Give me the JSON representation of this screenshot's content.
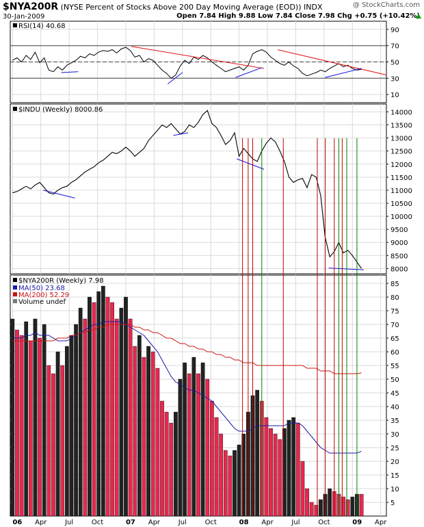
{
  "header": {
    "symbol": "$NYA200R",
    "description": "(NYSE Percent of Stocks Above 200 Day Moving Average (EOD))",
    "exchange": "INDX",
    "date": "30-Jan-2009",
    "ohlc": "Open 7.84  High 9.88  Low 7.84  Close 7.98  Chg +0.75 (+10.42%)",
    "watermark": "@ StockCharts.com",
    "change_color": "#009900"
  },
  "colors": {
    "up_bar": "#222222",
    "down_bar": "#e8284e",
    "ma50": "#1a1aa6",
    "ma200": "#cc1111",
    "trend_red": "#e01010",
    "trend_blue": "#1010e0",
    "vline_red": "#c00000",
    "vline_green": "#008000",
    "grid": "#d9d9d9"
  },
  "chart_data": [
    {
      "type": "line",
      "panel": "rsi",
      "legend": "RSI(14) 40.68",
      "ylim": [
        0,
        100
      ],
      "yticks": [
        10,
        30,
        50,
        70,
        90
      ],
      "reference_lines": [
        30,
        50,
        70
      ],
      "x": [
        2006.0,
        2006.04,
        2006.08,
        2006.12,
        2006.16,
        2006.2,
        2006.24,
        2006.28,
        2006.32,
        2006.36,
        2006.4,
        2006.44,
        2006.48,
        2006.52,
        2006.56,
        2006.6,
        2006.64,
        2006.68,
        2006.72,
        2006.76,
        2006.8,
        2006.84,
        2006.88,
        2006.92,
        2006.96,
        2007.0,
        2007.04,
        2007.08,
        2007.12,
        2007.16,
        2007.2,
        2007.24,
        2007.28,
        2007.32,
        2007.36,
        2007.4,
        2007.44,
        2007.48,
        2007.52,
        2007.56,
        2007.6,
        2007.64,
        2007.68,
        2007.72,
        2007.76,
        2007.8,
        2007.84,
        2007.88,
        2007.92,
        2007.96,
        2008.0,
        2008.04,
        2008.08,
        2008.12,
        2008.16,
        2008.2,
        2008.24,
        2008.28,
        2008.32,
        2008.36,
        2008.4,
        2008.44,
        2008.48,
        2008.52,
        2008.56,
        2008.6,
        2008.64,
        2008.68,
        2008.72,
        2008.76,
        2008.8,
        2008.84,
        2008.88,
        2008.92,
        2008.96,
        2009.0,
        2009.04,
        2009.08
      ],
      "values": [
        52,
        55,
        50,
        58,
        53,
        62,
        49,
        55,
        40,
        38,
        44,
        40,
        46,
        49,
        52,
        57,
        55,
        60,
        58,
        62,
        64,
        63,
        65,
        61,
        66,
        68,
        64,
        56,
        58,
        50,
        54,
        52,
        46,
        40,
        36,
        30,
        34,
        45,
        52,
        48,
        56,
        53,
        58,
        55,
        50,
        46,
        42,
        38,
        40,
        42,
        44,
        40,
        46,
        60,
        63,
        65,
        62,
        56,
        52,
        48,
        46,
        50,
        45,
        42,
        36,
        33,
        35,
        37,
        40,
        38,
        42,
        45,
        48,
        44,
        46,
        42,
        40,
        41
      ]
    },
    {
      "type": "line",
      "panel": "price",
      "legend": "$INDU (Weekly) 8000.86",
      "ylim": [
        7800,
        14300
      ],
      "yticks": [
        8000,
        8500,
        9000,
        9500,
        10000,
        10500,
        11000,
        11500,
        12000,
        12500,
        13000,
        13500,
        14000
      ],
      "x": [
        2006.0,
        2006.04,
        2006.08,
        2006.12,
        2006.16,
        2006.2,
        2006.24,
        2006.28,
        2006.32,
        2006.36,
        2006.4,
        2006.44,
        2006.48,
        2006.52,
        2006.56,
        2006.6,
        2006.64,
        2006.68,
        2006.72,
        2006.76,
        2006.8,
        2006.84,
        2006.88,
        2006.92,
        2006.96,
        2007.0,
        2007.04,
        2007.08,
        2007.12,
        2007.16,
        2007.2,
        2007.24,
        2007.28,
        2007.32,
        2007.36,
        2007.4,
        2007.44,
        2007.48,
        2007.52,
        2007.56,
        2007.6,
        2007.64,
        2007.68,
        2007.72,
        2007.76,
        2007.8,
        2007.84,
        2007.88,
        2007.92,
        2007.96,
        2008.0,
        2008.04,
        2008.08,
        2008.12,
        2008.16,
        2008.2,
        2008.24,
        2008.28,
        2008.32,
        2008.36,
        2008.4,
        2008.44,
        2008.48,
        2008.52,
        2008.56,
        2008.6,
        2008.64,
        2008.68,
        2008.72,
        2008.76,
        2008.8,
        2008.84,
        2008.88,
        2008.92,
        2008.96,
        2009.0,
        2009.04,
        2009.08
      ],
      "values": [
        10900,
        10950,
        11050,
        11150,
        11050,
        11200,
        11300,
        11100,
        10900,
        10850,
        11000,
        11100,
        11150,
        11300,
        11400,
        11550,
        11700,
        11800,
        11900,
        12050,
        12150,
        12300,
        12450,
        12400,
        12500,
        12650,
        12500,
        12300,
        12450,
        12600,
        12900,
        13100,
        13300,
        13500,
        13400,
        13550,
        13350,
        13150,
        13250,
        13500,
        13400,
        13600,
        13900,
        14050,
        13550,
        13400,
        13100,
        12750,
        12900,
        13200,
        12300,
        12600,
        12400,
        12200,
        12100,
        12500,
        12800,
        13000,
        12850,
        12500,
        12100,
        11500,
        11300,
        11400,
        11450,
        11100,
        11600,
        11500,
        10800,
        9200,
        8450,
        8650,
        9000,
        8600,
        8700,
        8500,
        8250,
        8001
      ]
    },
    {
      "type": "bar",
      "panel": "breadth",
      "legend": "$NYA200R (Weekly) 7.98",
      "ma_legends": [
        "MA(50) 23.68",
        "MA(200) 52.29",
        "Volume undef"
      ],
      "ylim": [
        0,
        88
      ],
      "yticks": [
        5,
        10,
        15,
        20,
        25,
        30,
        35,
        40,
        45,
        50,
        55,
        60,
        65,
        70,
        75,
        80,
        85
      ],
      "x": [
        2006.0,
        2006.04,
        2006.08,
        2006.12,
        2006.16,
        2006.2,
        2006.24,
        2006.28,
        2006.32,
        2006.36,
        2006.4,
        2006.44,
        2006.48,
        2006.52,
        2006.56,
        2006.6,
        2006.64,
        2006.68,
        2006.72,
        2006.76,
        2006.8,
        2006.84,
        2006.88,
        2006.92,
        2006.96,
        2007.0,
        2007.04,
        2007.08,
        2007.12,
        2007.16,
        2007.2,
        2007.24,
        2007.28,
        2007.32,
        2007.36,
        2007.4,
        2007.44,
        2007.48,
        2007.52,
        2007.56,
        2007.6,
        2007.64,
        2007.68,
        2007.72,
        2007.76,
        2007.8,
        2007.84,
        2007.88,
        2007.92,
        2007.96,
        2008.0,
        2008.04,
        2008.08,
        2008.12,
        2008.16,
        2008.2,
        2008.24,
        2008.28,
        2008.32,
        2008.36,
        2008.4,
        2008.44,
        2008.48,
        2008.52,
        2008.56,
        2008.6,
        2008.64,
        2008.68,
        2008.72,
        2008.76,
        2008.8,
        2008.84,
        2008.88,
        2008.92,
        2008.96,
        2009.0,
        2009.04,
        2009.08
      ],
      "values": [
        72,
        68,
        66,
        71,
        64,
        72,
        65,
        70,
        55,
        52,
        60,
        55,
        62,
        66,
        70,
        76,
        72,
        80,
        78,
        82,
        84,
        80,
        78,
        72,
        76,
        80,
        72,
        62,
        66,
        58,
        62,
        60,
        54,
        42,
        38,
        34,
        38,
        50,
        56,
        52,
        58,
        52,
        56,
        50,
        42,
        36,
        30,
        24,
        22,
        24,
        26,
        30,
        38,
        44,
        46,
        42,
        36,
        32,
        30,
        28,
        32,
        35,
        36,
        34,
        20,
        10,
        5,
        4,
        6,
        8,
        10,
        9,
        8,
        7,
        6,
        7,
        8,
        7.98
      ],
      "ma50": [
        65,
        65,
        65,
        66,
        66,
        67,
        66,
        66,
        66,
        65,
        64,
        64,
        64,
        65,
        66,
        67,
        68,
        69,
        70,
        70,
        71,
        71,
        71,
        71,
        71,
        70,
        69,
        68,
        67,
        66,
        64,
        62,
        60,
        57,
        54,
        51,
        49,
        48,
        47,
        46,
        46,
        45,
        44,
        43,
        42,
        40,
        38,
        36,
        34,
        32,
        31,
        31,
        31,
        32,
        33,
        33,
        33,
        33,
        33,
        33,
        33,
        34,
        34,
        34,
        33,
        31,
        29,
        27,
        25,
        24,
        23,
        23,
        23,
        23,
        23,
        23,
        23,
        23.68
      ],
      "ma200": [
        64,
        64,
        64,
        64,
        64,
        64,
        64,
        64,
        64,
        64,
        65,
        65,
        65,
        66,
        66,
        67,
        67,
        68,
        68,
        69,
        69,
        70,
        70,
        70,
        70,
        70,
        70,
        69,
        69,
        68,
        68,
        67,
        67,
        66,
        65,
        65,
        64,
        63,
        63,
        62,
        62,
        61,
        61,
        60,
        60,
        59,
        59,
        58,
        58,
        57,
        57,
        56,
        56,
        56,
        55,
        55,
        55,
        55,
        55,
        55,
        55,
        55,
        55,
        55,
        55,
        54,
        54,
        54,
        53,
        53,
        53,
        52,
        52,
        52,
        52,
        52,
        52,
        52.29
      ]
    }
  ],
  "x_axis": {
    "range": [
      2005.98,
      2009.3
    ],
    "ticks": [
      {
        "x": 2006.0,
        "label": "06",
        "bold": true
      },
      {
        "x": 2006.25,
        "label": "Apr",
        "bold": false
      },
      {
        "x": 2006.5,
        "label": "Jul",
        "bold": false
      },
      {
        "x": 2006.75,
        "label": "Oct",
        "bold": false
      },
      {
        "x": 2007.0,
        "label": "07",
        "bold": true
      },
      {
        "x": 2007.25,
        "label": "Apr",
        "bold": false
      },
      {
        "x": 2007.5,
        "label": "Jul",
        "bold": false
      },
      {
        "x": 2007.75,
        "label": "Oct",
        "bold": false
      },
      {
        "x": 2008.0,
        "label": "08",
        "bold": true
      },
      {
        "x": 2008.25,
        "label": "Apr",
        "bold": false
      },
      {
        "x": 2008.5,
        "label": "Jul",
        "bold": false
      },
      {
        "x": 2008.75,
        "label": "Oct",
        "bold": false
      },
      {
        "x": 2009.0,
        "label": "09",
        "bold": true
      },
      {
        "x": 2009.25,
        "label": "Apr",
        "bold": false
      }
    ]
  },
  "annotations": {
    "vertical_lines": [
      {
        "x": 2008.03,
        "color": "red"
      },
      {
        "x": 2008.08,
        "color": "red"
      },
      {
        "x": 2008.12,
        "color": "red"
      },
      {
        "x": 2008.2,
        "color": "green"
      },
      {
        "x": 2008.39,
        "color": "red"
      },
      {
        "x": 2008.69,
        "color": "red"
      },
      {
        "x": 2008.76,
        "color": "red"
      },
      {
        "x": 2008.84,
        "color": "red"
      },
      {
        "x": 2008.88,
        "color": "green"
      },
      {
        "x": 2008.91,
        "color": "red"
      },
      {
        "x": 2008.95,
        "color": "green"
      },
      {
        "x": 2009.04,
        "color": "green"
      }
    ],
    "rsi_trendlines": [
      {
        "color": "red",
        "x1": 2007.05,
        "y1": 69,
        "x2": 2008.22,
        "y2": 42
      },
      {
        "color": "red",
        "x1": 2008.34,
        "y1": 65,
        "x2": 2009.3,
        "y2": 34
      },
      {
        "color": "blue",
        "x1": 2006.43,
        "y1": 37,
        "x2": 2006.58,
        "y2": 38
      },
      {
        "color": "blue",
        "x1": 2007.37,
        "y1": 23,
        "x2": 2007.5,
        "y2": 37
      },
      {
        "color": "blue",
        "x1": 2007.97,
        "y1": 31,
        "x2": 2008.2,
        "y2": 43
      },
      {
        "color": "blue",
        "x1": 2008.76,
        "y1": 31,
        "x2": 2009.08,
        "y2": 42
      }
    ],
    "price_trendlines": [
      {
        "color": "blue",
        "x1": 2006.27,
        "y1": 11000,
        "x2": 2006.55,
        "y2": 10700
      },
      {
        "color": "blue",
        "x1": 2007.42,
        "y1": 13100,
        "x2": 2007.55,
        "y2": 13200
      },
      {
        "color": "blue",
        "x1": 2007.98,
        "y1": 12200,
        "x2": 2008.22,
        "y2": 11800
      },
      {
        "color": "blue",
        "x1": 2008.79,
        "y1": 8020,
        "x2": 2009.1,
        "y2": 7950
      }
    ]
  }
}
